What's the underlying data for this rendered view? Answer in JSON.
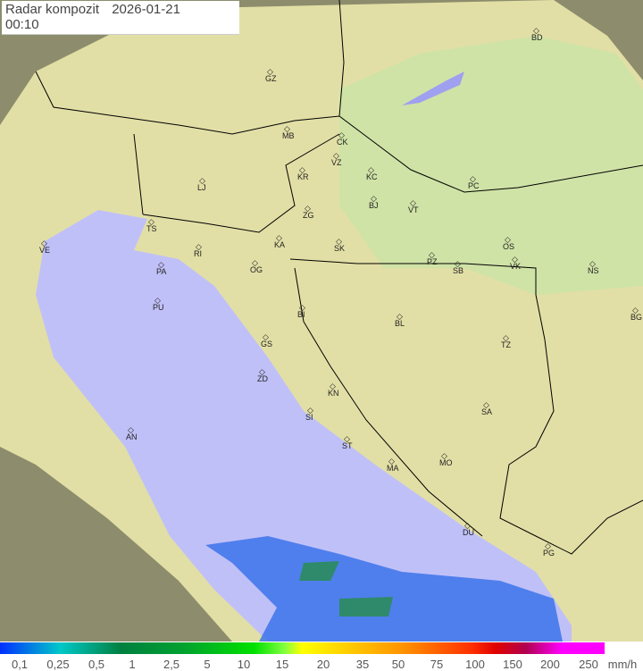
{
  "title": {
    "label": "Radar kompozit",
    "date": "2026-01-21",
    "time": "00:10"
  },
  "legend": {
    "values": [
      "0,1",
      "0,25",
      "0,5",
      "1",
      "2,5",
      "5",
      "10",
      "15",
      "20",
      "35",
      "50",
      "75",
      "100",
      "150",
      "200",
      "250"
    ],
    "unit": "mm/h"
  },
  "cities": [
    "GZ",
    "BD",
    "MB",
    "CK",
    "VZ",
    "KR",
    "KC",
    "LJ",
    "PC",
    "BJ",
    "VT",
    "ZG",
    "TS",
    "VE",
    "KA",
    "SK",
    "RI",
    "OS",
    "PA",
    "OG",
    "PZ",
    "SB",
    "VK",
    "NS",
    "PU",
    "BI",
    "BG",
    "BL",
    "GS",
    "TZ",
    "ZD",
    "KN",
    "SA",
    "SI",
    "AN",
    "ST",
    "MA",
    "MO",
    "DU",
    "PG"
  ],
  "colors": {
    "land": "#e2e2a8",
    "sea": "#c0c0f8",
    "outside": "#8a8a6a",
    "radar": "#2050e0"
  }
}
